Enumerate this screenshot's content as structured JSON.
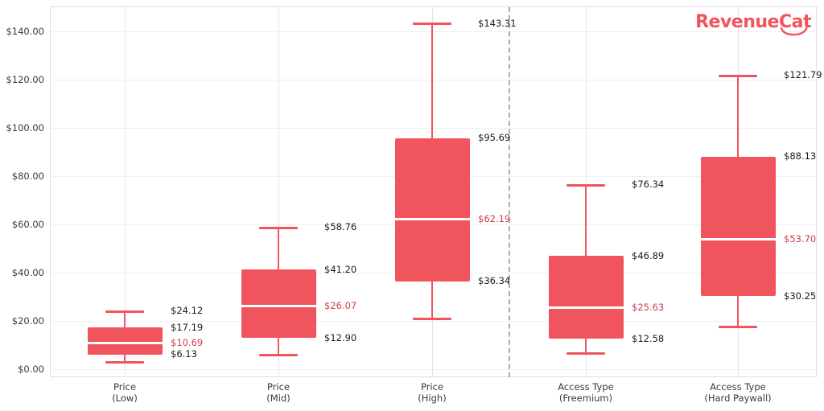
{
  "logo": {
    "part1": "Revenue",
    "part2": "Cat",
    "color": "#F2545B"
  },
  "chart_data": {
    "type": "box",
    "title": "",
    "xlabel": "",
    "ylabel": "",
    "currency_format": "USD",
    "grid": true,
    "legend": null,
    "y_axis": {
      "range": [
        0,
        150
      ],
      "ticks": [
        {
          "label": "$0.00",
          "value": 0
        },
        {
          "label": "$20.00",
          "value": 20
        },
        {
          "label": "$40.00",
          "value": 40
        },
        {
          "label": "$60.00",
          "value": 60
        },
        {
          "label": "$80.00",
          "value": 80
        },
        {
          "label": "$100.00",
          "value": 100
        },
        {
          "label": "$120.00",
          "value": 120
        },
        {
          "label": "$140.00",
          "value": 140
        }
      ]
    },
    "categories": [
      "Price (Low)",
      "Price (Mid)",
      "Price (High)",
      "Access Type (Freemium)",
      "Access Type (Hard Paywall)"
    ],
    "boxes": [
      {
        "category_line1": "Price",
        "category_line2": "(Low)",
        "whisker_high": 24.12,
        "q3": 17.19,
        "median": 10.69,
        "q1": 6.13,
        "whisker_low": 2.8,
        "labels": {
          "whisker_high": "$24.12",
          "q3": "$17.19",
          "median": "$10.69",
          "q1": "$6.13"
        }
      },
      {
        "category_line1": "Price",
        "category_line2": "(Mid)",
        "whisker_high": 58.76,
        "q3": 41.2,
        "median": 26.07,
        "q1": 12.9,
        "whisker_low": 5.6,
        "labels": {
          "whisker_high": "$58.76",
          "q3": "$41.20",
          "median": "$26.07",
          "q1": "$12.90"
        }
      },
      {
        "category_line1": "Price",
        "category_line2": "(High)",
        "whisker_high": 143.31,
        "q3": 95.69,
        "median": 62.19,
        "q1": 36.34,
        "whisker_low": 20.8,
        "labels": {
          "whisker_high": "$143.31",
          "q3": "$95.69",
          "median": "$62.19",
          "q1": "$36.34"
        }
      },
      {
        "category_line1": "Access Type",
        "category_line2": "(Freemium)",
        "whisker_high": 76.34,
        "q3": 46.89,
        "median": 25.63,
        "q1": 12.58,
        "whisker_low": 6.3,
        "labels": {
          "whisker_high": "$76.34",
          "q3": "$46.89",
          "median": "$25.63",
          "q1": "$12.58"
        }
      },
      {
        "category_line1": "Access Type",
        "category_line2": "(Hard Paywall)",
        "whisker_high": 121.79,
        "q3": 88.13,
        "median": 53.7,
        "q1": 30.25,
        "whisker_low": 17.2,
        "labels": {
          "whisker_high": "$121.79",
          "q3": "$88.13",
          "median": "$53.70",
          "q1": "$30.25"
        }
      }
    ],
    "divider": {
      "between_categories": [
        "Price (High)",
        "Access Type (Freemium)"
      ],
      "style": "dashed"
    },
    "colors": {
      "box_fill": "#F0545C",
      "whisker": "#F0545C",
      "median_line": "#FFFFFF",
      "median_label": "#CC3D4D",
      "value_label": "#1B1B1F",
      "axis_label": "#3A3A3E"
    }
  }
}
